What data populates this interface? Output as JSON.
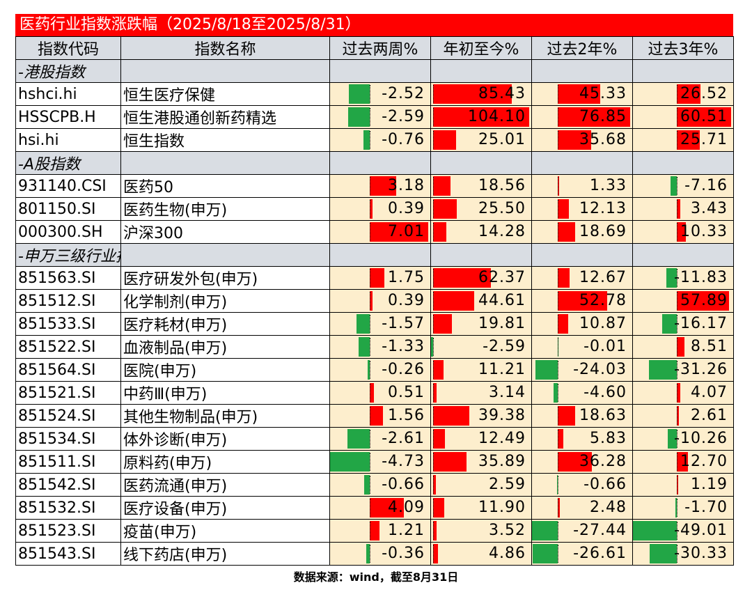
{
  "title": "医药行业指数涨跌幅（2025/8/18至2025/8/31）",
  "headers": [
    "指数代码",
    "指数名称",
    "过去两周%",
    "年初至今%",
    "过去2年%",
    "过去3年%"
  ],
  "colors": {
    "positive": "#ff0000",
    "negative": "#22a646",
    "cell_bg": "#fdeecd",
    "header_bg": "#d9dde3"
  },
  "sections": [
    {
      "label": "-港股指数",
      "rows": [
        {
          "code": "hshci.hi",
          "name": "恒生医疗保健",
          "values": [
            "-2.52",
            "85.43",
            "45.33",
            "26.52"
          ]
        },
        {
          "code": "HSSCPB.H",
          "name": "恒生港股通创新药精选",
          "values": [
            "-2.59",
            "104.10",
            "76.85",
            "60.51"
          ]
        },
        {
          "code": "hsi.hi",
          "name": "恒生指数",
          "values": [
            "-0.76",
            "25.01",
            "35.68",
            "25.71"
          ]
        }
      ]
    },
    {
      "label": "-A股指数",
      "rows": [
        {
          "code": "931140.CSI",
          "name": "医药50",
          "values": [
            "3.18",
            "18.56",
            "1.33",
            "-7.16"
          ]
        },
        {
          "code": "801150.SI",
          "name": "医药生物(申万)",
          "values": [
            "0.39",
            "25.50",
            "12.13",
            "3.43"
          ]
        },
        {
          "code": "000300.SH",
          "name": "沪深300",
          "values": [
            "7.01",
            "14.28",
            "18.69",
            "10.33"
          ]
        }
      ]
    },
    {
      "label": "-申万三级行业指数",
      "rows": [
        {
          "code": "851563.SI",
          "name": "医疗研发外包(申万)",
          "values": [
            "1.75",
            "62.37",
            "12.67",
            "-11.83"
          ]
        },
        {
          "code": "851512.SI",
          "name": "化学制剂(申万)",
          "values": [
            "0.39",
            "44.61",
            "52.78",
            "57.89"
          ]
        },
        {
          "code": "851533.SI",
          "name": "医疗耗材(申万)",
          "values": [
            "-1.57",
            "19.81",
            "10.87",
            "-16.17"
          ]
        },
        {
          "code": "851522.SI",
          "name": "血液制品(申万)",
          "values": [
            "-1.33",
            "-2.59",
            "-0.01",
            "8.51"
          ]
        },
        {
          "code": "851564.SI",
          "name": "医院(申万)",
          "values": [
            "-0.26",
            "11.21",
            "-24.03",
            "-31.26"
          ]
        },
        {
          "code": "851521.SI",
          "name": "中药Ⅲ(申万)",
          "values": [
            "0.51",
            "3.14",
            "-4.60",
            "4.07"
          ]
        },
        {
          "code": "851524.SI",
          "name": "其他生物制品(申万)",
          "values": [
            "1.56",
            "39.38",
            "18.63",
            "2.61"
          ]
        },
        {
          "code": "851534.SI",
          "name": "体外诊断(申万)",
          "values": [
            "-2.61",
            "12.49",
            "5.83",
            "-10.26"
          ]
        },
        {
          "code": "851511.SI",
          "name": "原料药(申万)",
          "values": [
            "-4.73",
            "35.89",
            "36.28",
            "12.70"
          ]
        },
        {
          "code": "851542.SI",
          "name": "医药流通(申万)",
          "values": [
            "-0.66",
            "2.59",
            "-0.66",
            "1.19"
          ]
        },
        {
          "code": "851532.SI",
          "name": "医疗设备(申万)",
          "values": [
            "4.09",
            "11.90",
            "2.48",
            "-1.70"
          ]
        },
        {
          "code": "851523.SI",
          "name": "疫苗(申万)",
          "values": [
            "1.21",
            "3.52",
            "-27.44",
            "-49.01"
          ]
        },
        {
          "code": "851543.SI",
          "name": "线下药店(申万)",
          "values": [
            "-0.36",
            "4.86",
            "-26.61",
            "-30.33"
          ]
        }
      ]
    }
  ],
  "footer": "数据来源：wind，截至8月31日"
}
